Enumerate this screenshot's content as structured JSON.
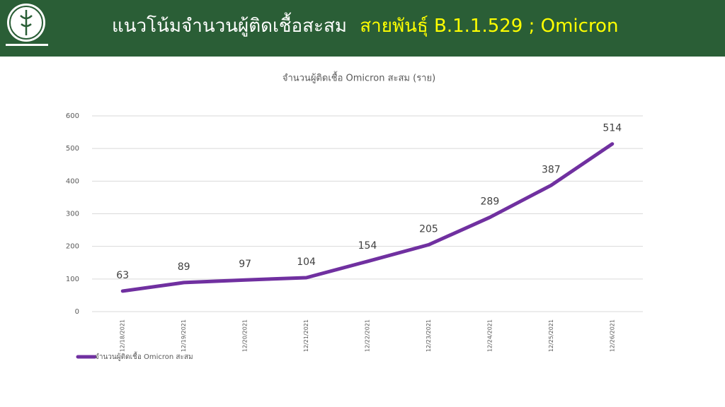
{
  "header": {
    "title": "แนวโน้มจำนวนผู้ติดเชื้อสะสม",
    "title_highlight": "สายพันธุ์ B.1.1.529 ; Omicron"
  },
  "chart_data": {
    "type": "line",
    "title": "จำนวนผู้ติดเชื้อ Omicron สะสม (ราย)",
    "categories": [
      "12/18/2021",
      "12/19/2021",
      "12/20/2021",
      "12/21/2021",
      "12/22/2021",
      "12/23/2021",
      "12/24/2021",
      "12/25/2021",
      "12/26/2021"
    ],
    "series": [
      {
        "name": "จำนวนผู้ติดเชื้อ Omicron สะสม",
        "color": "#7030a0",
        "values": [
          63,
          89,
          97,
          104,
          154,
          205,
          289,
          387,
          514
        ]
      }
    ],
    "ylim": [
      0,
      600
    ],
    "yticks": [
      0,
      100,
      200,
      300,
      400,
      500,
      600
    ],
    "grid": true,
    "legend": "bottom-left"
  }
}
